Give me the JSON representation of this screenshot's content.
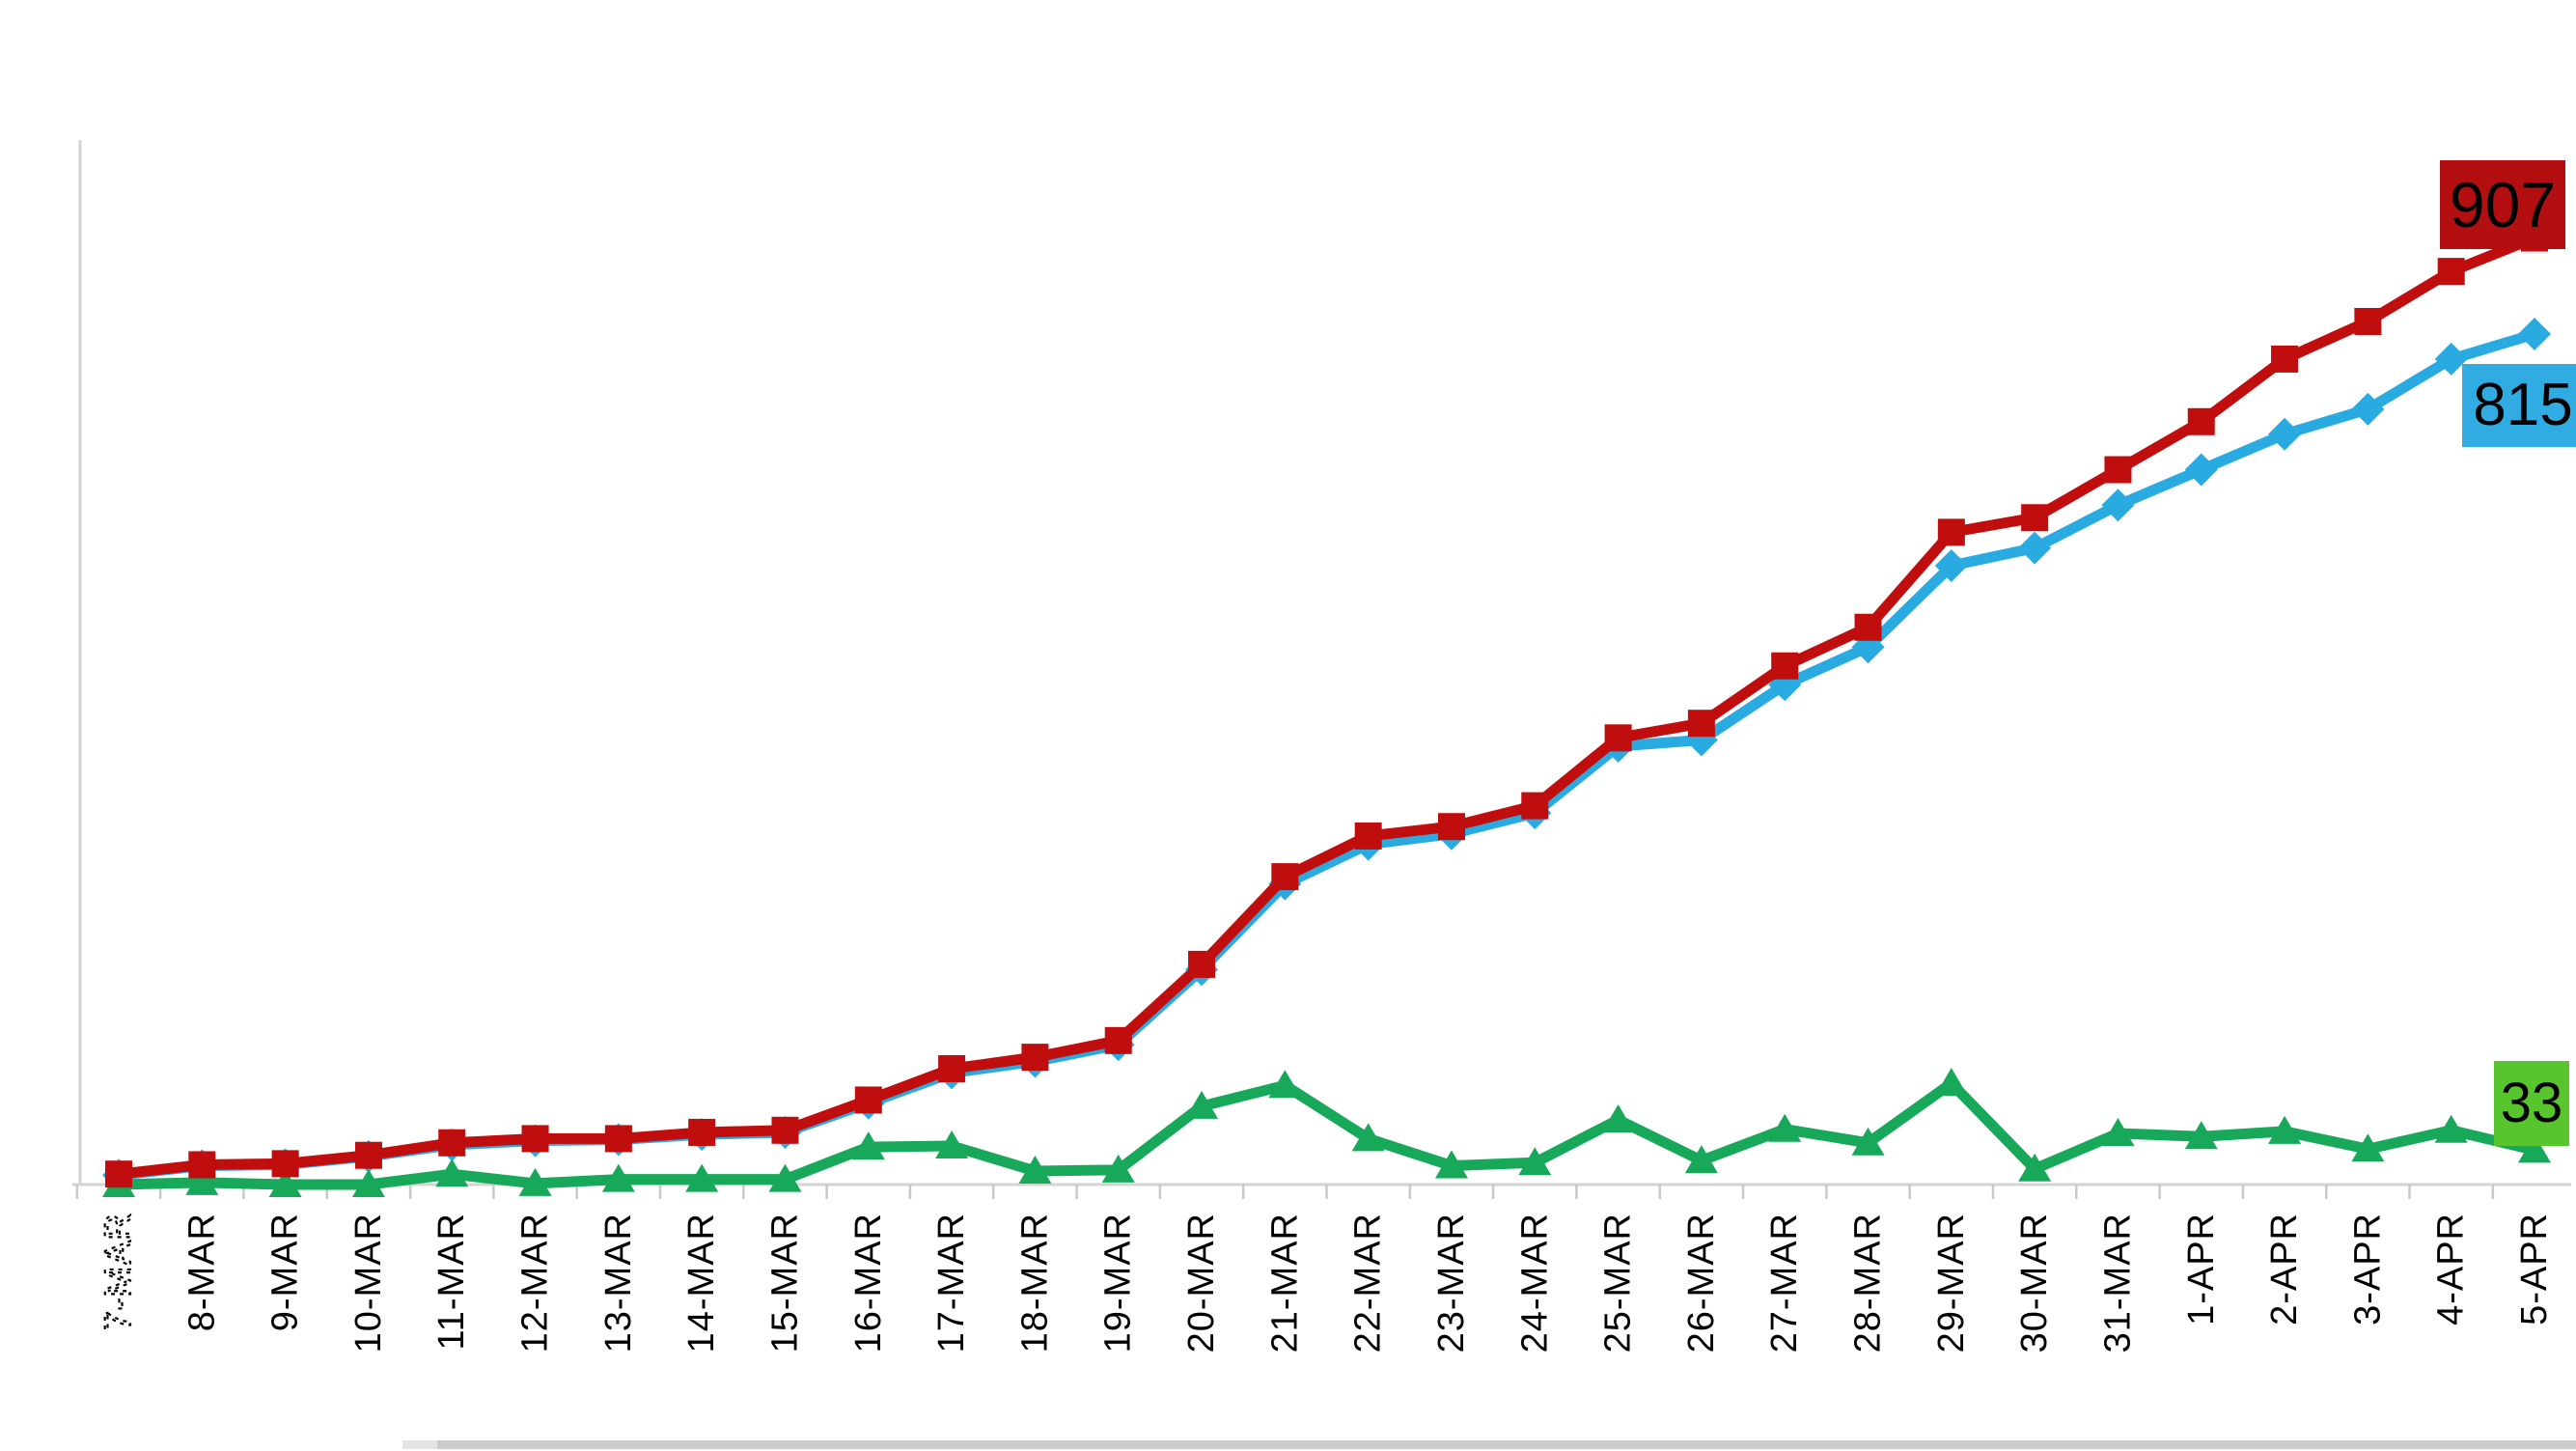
{
  "chart_data": {
    "type": "line",
    "title": "",
    "xlabel": "",
    "ylabel": "",
    "ylim": [
      0,
      1000
    ],
    "grid": false,
    "legend": "none",
    "x_axis": {
      "tick_color": "#c9c9c9",
      "line_color": "#d3d3d3",
      "label_color": "#000000",
      "first_label_style": "dotted-outline"
    },
    "categories": [
      "7-MAR",
      "8-MAR",
      "9-MAR",
      "10-MAR",
      "11-MAR",
      "12-MAR",
      "13-MAR",
      "14-MAR",
      "15-MAR",
      "16-MAR",
      "17-MAR",
      "18-MAR",
      "19-MAR",
      "20-MAR",
      "21-MAR",
      "22-MAR",
      "23-MAR",
      "24-MAR",
      "25-MAR",
      "26-MAR",
      "27-MAR",
      "28-MAR",
      "29-MAR",
      "30-MAR",
      "31-MAR",
      "1-APR",
      "2-APR",
      "3-APR",
      "4-APR",
      "5-APR"
    ],
    "series": [
      {
        "name": "blue-series",
        "color": "#29abe2",
        "marker": "diamond",
        "values": [
          9,
          18,
          19,
          27,
          38,
          42,
          43,
          48,
          50,
          78,
          107,
          118,
          134,
          206,
          288,
          326,
          336,
          356,
          420,
          426,
          479,
          515,
          593,
          610,
          651,
          685,
          719,
          743,
          791,
          815
        ]
      },
      {
        "name": "green-series",
        "color": "#17a85a",
        "marker": "triangle",
        "values": [
          0,
          2,
          0,
          0,
          10,
          1,
          5,
          5,
          5,
          36,
          37,
          13,
          14,
          75,
          95,
          44,
          18,
          21,
          62,
          23,
          53,
          40,
          97,
          15,
          49,
          46,
          51,
          34,
          52,
          33
        ]
      },
      {
        "name": "red-series",
        "color": "#c00d0d",
        "marker": "square",
        "values": [
          10,
          19,
          20,
          28,
          40,
          44,
          44,
          50,
          52,
          81,
          111,
          122,
          138,
          211,
          295,
          334,
          343,
          363,
          428,
          442,
          497,
          534,
          625,
          639,
          685,
          731,
          791,
          827,
          875,
          907
        ]
      }
    ],
    "data_labels": [
      {
        "id": "red-end",
        "text": "907",
        "bg": "#b40f10",
        "text_color": "#000000"
      },
      {
        "id": "blue-end",
        "text": "815",
        "bg": "#31ace3",
        "text_color": "#000000"
      },
      {
        "id": "green-end",
        "text": "33",
        "bg": "#58c52f",
        "text_color": "#000000"
      }
    ]
  }
}
